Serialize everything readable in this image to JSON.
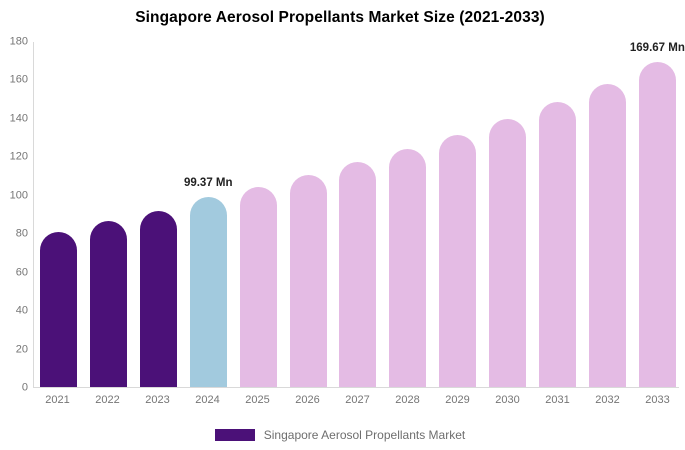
{
  "title": "Singapore Aerosol Propellants Market Size (2021-2033)",
  "legend": {
    "label": "Singapore Aerosol Propellants Market"
  },
  "chart_data": {
    "type": "bar",
    "title": "Singapore Aerosol Propellants Market Size (2021-2033)",
    "categories": [
      "2021",
      "2022",
      "2023",
      "2024",
      "2025",
      "2026",
      "2027",
      "2028",
      "2029",
      "2030",
      "2031",
      "2032",
      "2033"
    ],
    "values": [
      81,
      86.5,
      92,
      99.37,
      104.5,
      110.8,
      117.3,
      124.2,
      131.6,
      140,
      148.8,
      158.3,
      169.67
    ],
    "groups": [
      "historical",
      "historical",
      "historical",
      "current",
      "forecast",
      "forecast",
      "forecast",
      "forecast",
      "forecast",
      "forecast",
      "forecast",
      "forecast",
      "forecast"
    ],
    "point_labels": {
      "2024": "99.37 Mn",
      "2033": "169.67 Mn"
    },
    "colors": {
      "historical": "#4B1178",
      "current": "#A2CADE",
      "forecast": "#E4BBE4"
    },
    "axis_line_color": "#d9d9d9",
    "tick_label_color": "#757575",
    "value_label_color": "#222222",
    "xlabel": "",
    "ylabel": "",
    "ylim": [
      0,
      180
    ],
    "yticks": [
      0,
      20,
      40,
      60,
      80,
      100,
      120,
      140,
      160,
      180
    ],
    "grid": false,
    "legend_position": "bottom",
    "unit": "Mn"
  }
}
